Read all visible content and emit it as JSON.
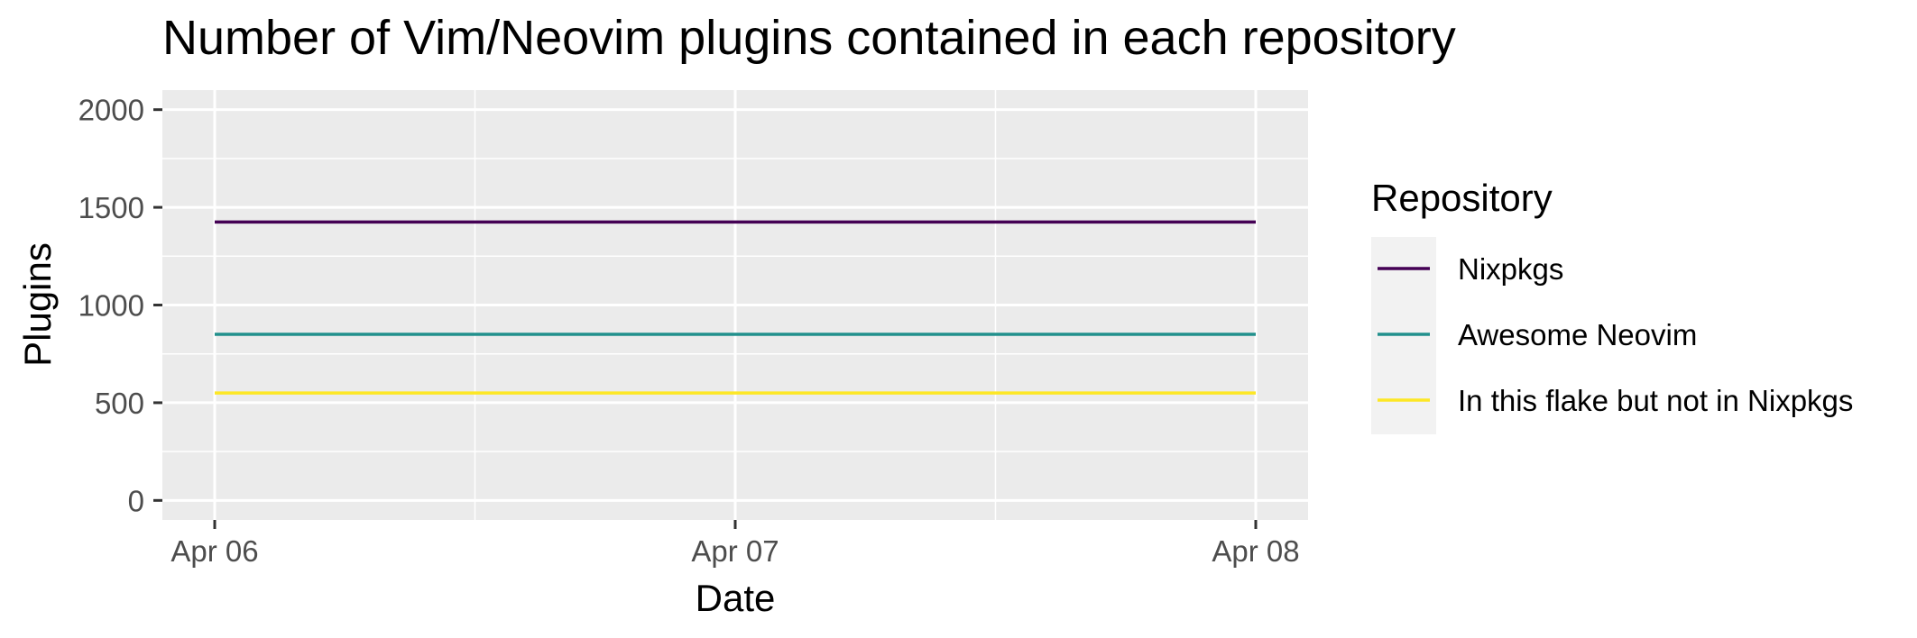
{
  "chart_data": {
    "type": "line",
    "title": "Number of Vim/Neovim plugins contained in each repository",
    "xlabel": "Date",
    "ylabel": "Plugins",
    "x": [
      "Apr 06",
      "Apr 07",
      "Apr 08"
    ],
    "x_ticks": [
      "Apr 06",
      "Apr 07",
      "Apr 08"
    ],
    "y_ticks": [
      "0",
      "500",
      "1000",
      "1500",
      "2000"
    ],
    "ylim": [
      -100,
      2100
    ],
    "grid": true,
    "legend": {
      "title": "Repository",
      "placement": "right"
    },
    "series": [
      {
        "name": "Nixpkgs",
        "color": "#440154",
        "values": [
          1425,
          1425,
          1425
        ]
      },
      {
        "name": "Awesome Neovim",
        "color": "#21908C",
        "values": [
          850,
          850,
          850
        ]
      },
      {
        "name": "In this flake but not in Nixpkgs",
        "color": "#FDE725",
        "values": [
          550,
          550,
          550
        ]
      }
    ]
  }
}
